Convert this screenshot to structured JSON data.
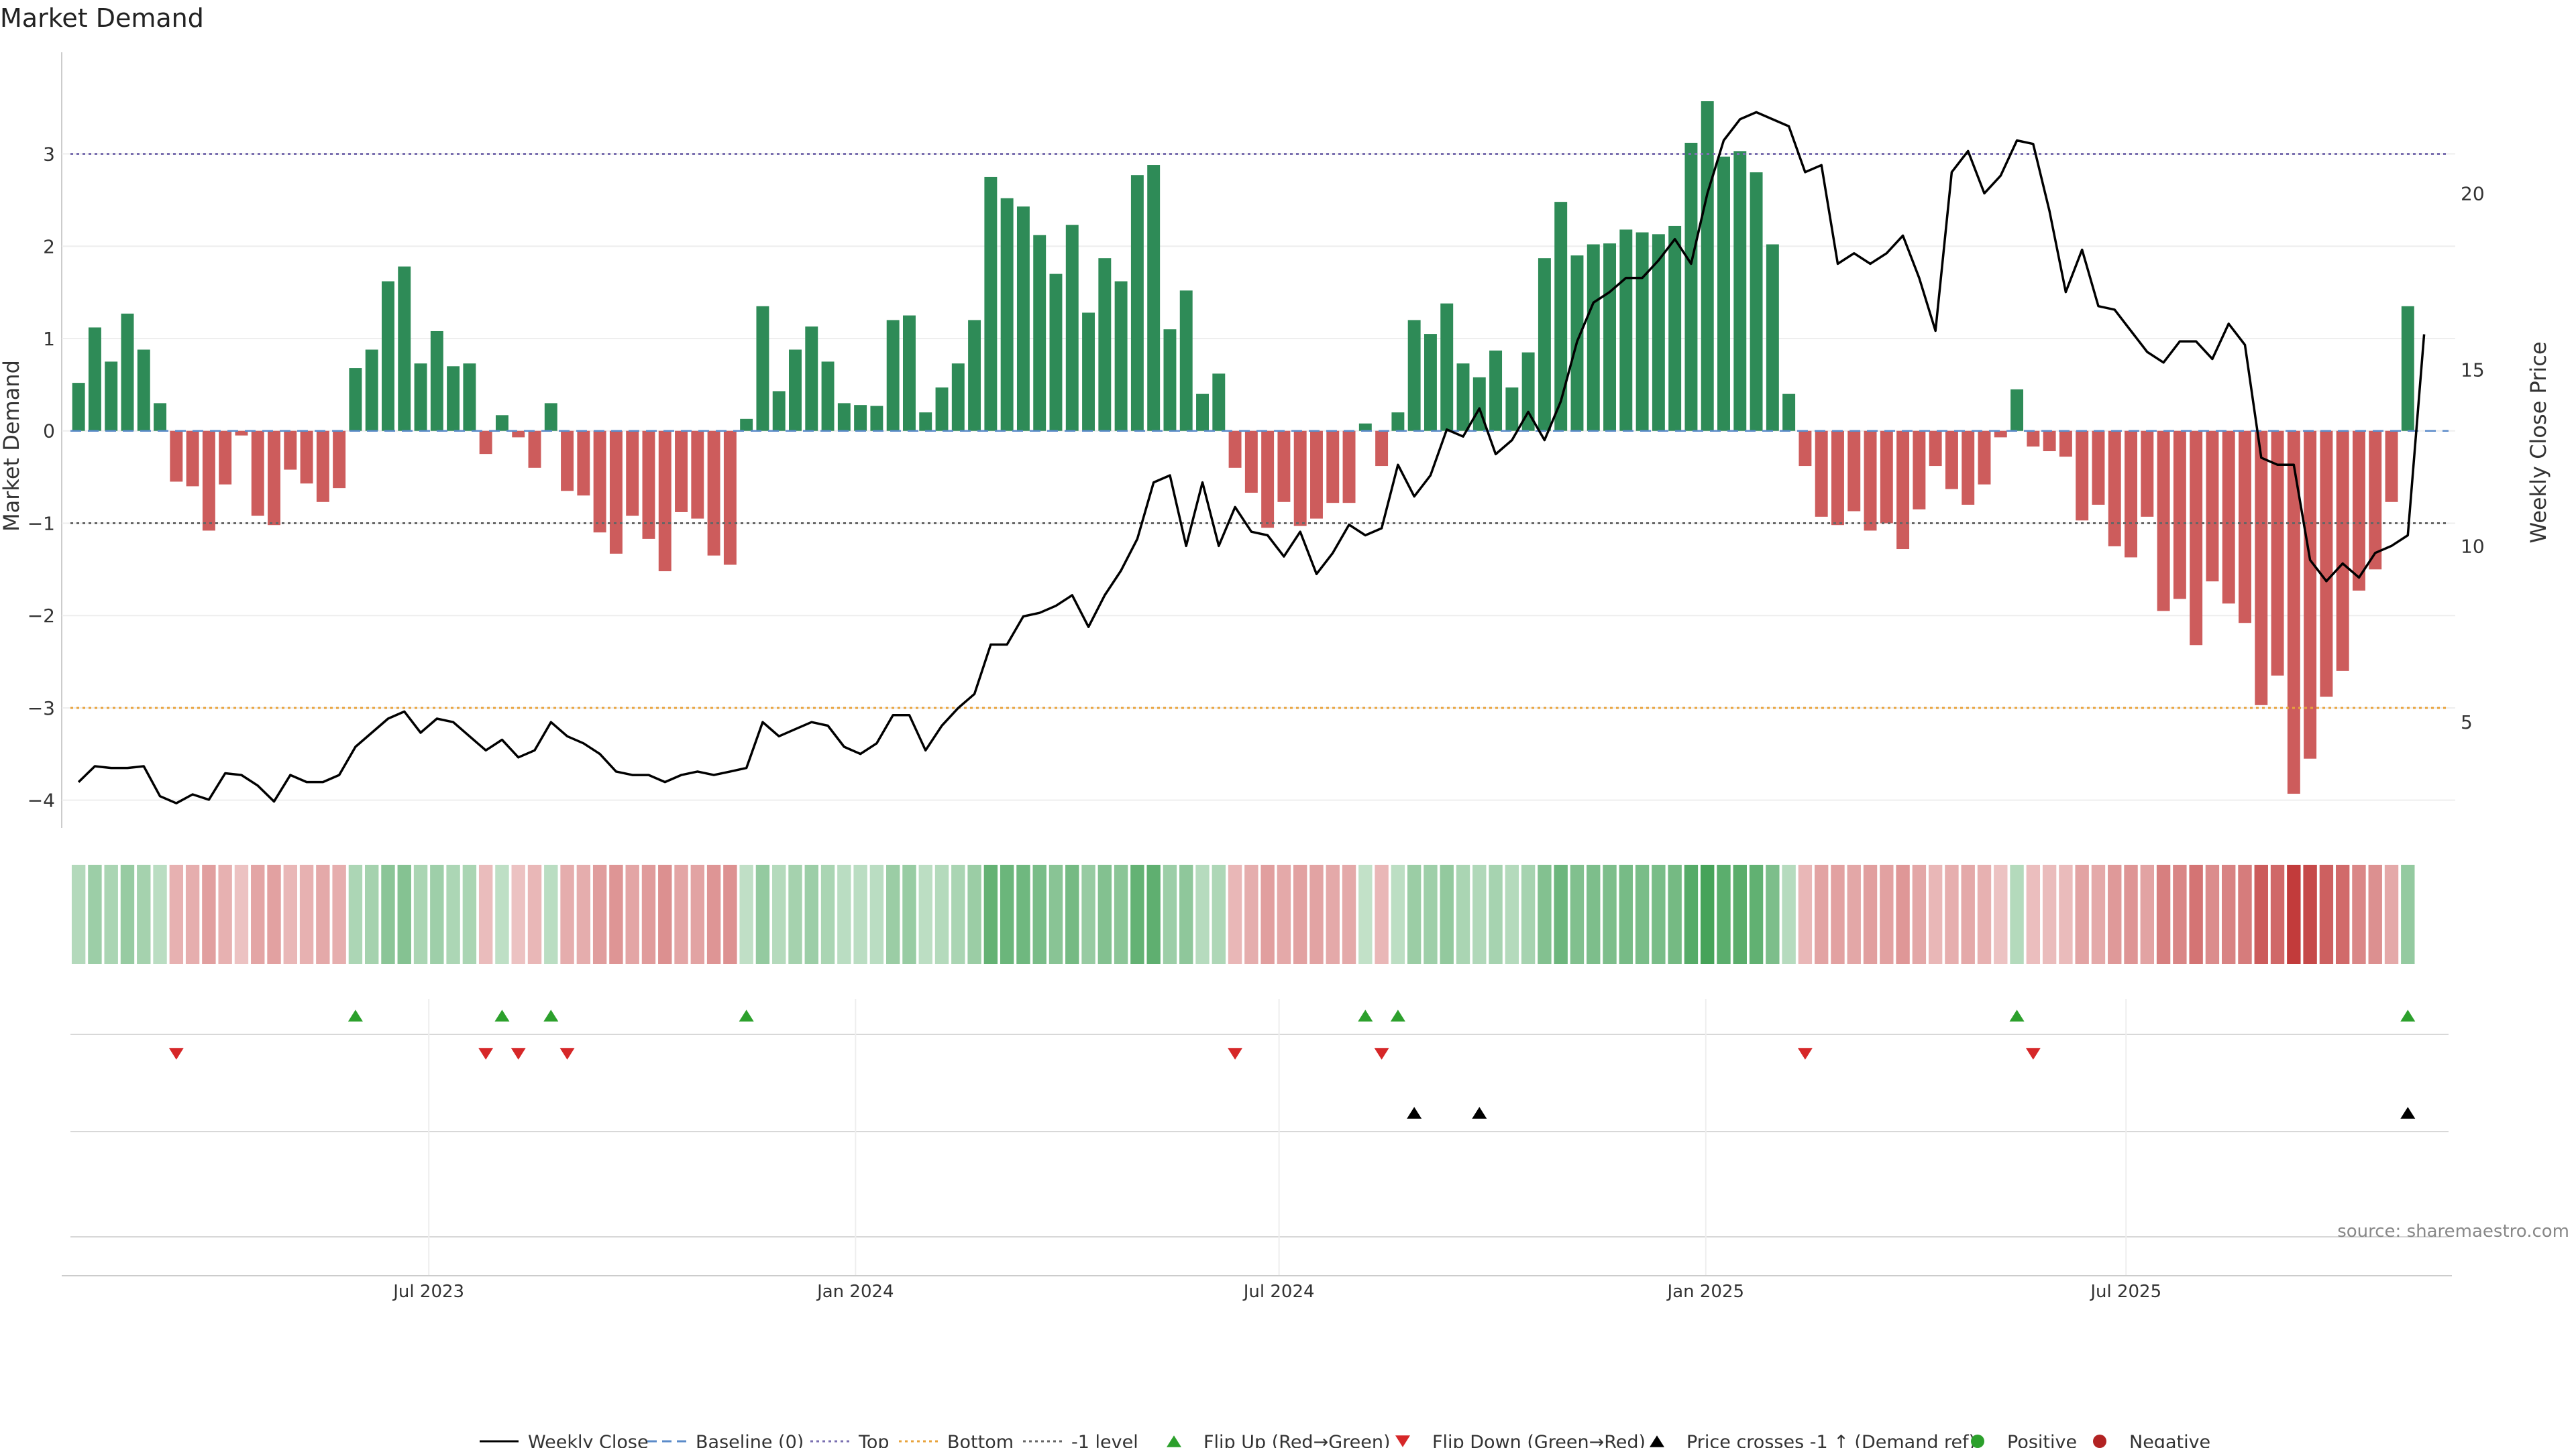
{
  "chart_data": {
    "type": "bar",
    "title": "Market Demand",
    "ylabel": "Market Demand",
    "ylabel_right": "Weekly Close Price",
    "ylim": [
      -4.3,
      4.1
    ],
    "ylim_right": [
      2.0,
      24.0
    ],
    "yticks": [
      3,
      2,
      1,
      0,
      -1,
      -2,
      -3,
      -4
    ],
    "ytick_labels": [
      "3",
      "2",
      "1",
      "0",
      "−1",
      "−2",
      "−3",
      "−4"
    ],
    "yticks_right": [
      20,
      15,
      10,
      5
    ],
    "ytick_labels_right": [
      "20",
      "15",
      "10",
      "5"
    ],
    "x_start": 0,
    "x_end": 145,
    "xticks": [
      21.5,
      47.7,
      73.7,
      99.9,
      125.7
    ],
    "xtick_labels": [
      "Jul 2023",
      "Jan 2024",
      "Jul 2024",
      "Jan 2025",
      "Jul 2025"
    ],
    "reference_lines": [
      {
        "name": "Top",
        "value": 3,
        "color": "#7a6fb0",
        "style": "dotted"
      },
      {
        "name": "-1 level",
        "value": -1,
        "color": "#666666",
        "style": "dotted"
      },
      {
        "name": "Bottom",
        "value": -3,
        "color": "#e8a33c",
        "style": "dotted"
      },
      {
        "name": "Baseline (0)",
        "value": 0,
        "color": "#5b8bc9",
        "style": "dashed"
      }
    ],
    "series": [
      {
        "name": "Market Demand",
        "values": [
          0.52,
          1.12,
          0.75,
          1.27,
          0.88,
          0.3,
          -0.55,
          -0.6,
          -1.08,
          -0.58,
          -0.05,
          -0.92,
          -1.02,
          -0.42,
          -0.57,
          -0.77,
          -0.62,
          0.68,
          0.88,
          1.62,
          1.78,
          0.73,
          1.08,
          0.7,
          0.73,
          -0.25,
          0.17,
          -0.07,
          -0.4,
          0.3,
          -0.65,
          -0.7,
          -1.1,
          -1.33,
          -0.92,
          -1.17,
          -1.52,
          -0.88,
          -0.95,
          -1.35,
          -1.45,
          0.13,
          1.35,
          0.43,
          0.88,
          1.13,
          0.75,
          0.3,
          0.28,
          0.27,
          1.2,
          1.25,
          0.2,
          0.47,
          0.73,
          1.2,
          2.75,
          2.52,
          2.43,
          2.12,
          1.7,
          2.23,
          1.28,
          1.87,
          1.62,
          2.77,
          2.88,
          1.1,
          1.52,
          0.4,
          0.62,
          -0.4,
          -0.67,
          -1.05,
          -0.77,
          -1.03,
          -0.95,
          -0.78,
          -0.78,
          0.08,
          -0.38,
          0.2,
          1.2,
          1.05,
          1.38,
          0.73,
          0.58,
          0.87,
          0.47,
          0.85,
          1.87,
          2.48,
          1.9,
          2.02,
          2.03,
          2.18,
          2.15,
          2.13,
          2.22,
          3.12,
          3.57,
          2.97,
          3.03,
          2.8,
          2.02,
          0.4,
          -0.38,
          -0.93,
          -1.02,
          -0.87,
          -1.08,
          -1.0,
          -1.28,
          -0.85,
          -0.38,
          -0.63,
          -0.8,
          -0.58,
          -0.07,
          0.45,
          -0.17,
          -0.22,
          -0.28,
          -0.97,
          -0.8,
          -1.25,
          -1.37,
          -0.93,
          -1.95,
          -1.82,
          -2.32,
          -1.63,
          -1.87,
          -2.08,
          -2.97,
          -2.65,
          -3.93,
          -3.55,
          -2.88,
          -2.6,
          -1.73,
          -1.5,
          -0.77,
          1.35
        ]
      },
      {
        "name": "Weekly Close",
        "axis": "right",
        "values": [
          3.3,
          3.75,
          3.7,
          3.7,
          3.75,
          2.9,
          2.7,
          2.95,
          2.8,
          3.55,
          3.5,
          3.2,
          2.75,
          3.5,
          3.3,
          3.3,
          3.5,
          4.3,
          4.7,
          5.1,
          5.3,
          4.7,
          5.1,
          5.0,
          4.6,
          4.2,
          4.5,
          4.0,
          4.2,
          5.0,
          4.6,
          4.4,
          4.1,
          3.6,
          3.5,
          3.5,
          3.3,
          3.5,
          3.6,
          3.5,
          3.6,
          3.7,
          5.0,
          4.6,
          4.8,
          5.0,
          4.9,
          4.3,
          4.1,
          4.4,
          5.2,
          5.2,
          4.2,
          4.9,
          5.4,
          5.8,
          7.2,
          7.2,
          8.0,
          8.1,
          8.3,
          8.6,
          7.7,
          8.6,
          9.3,
          10.2,
          11.8,
          12.0,
          10.0,
          11.8,
          10.0,
          11.1,
          10.4,
          10.3,
          9.7,
          10.4,
          9.2,
          9.8,
          10.6,
          10.3,
          10.5,
          12.3,
          11.4,
          12.0,
          13.3,
          13.1,
          13.9,
          12.6,
          13.0,
          13.8,
          13.0,
          14.1,
          15.8,
          16.9,
          17.2,
          17.6,
          17.6,
          18.1,
          18.7,
          18.0,
          20.0,
          21.5,
          22.1,
          22.3,
          22.1,
          21.9,
          20.6,
          20.8,
          18.0,
          18.3,
          18.0,
          18.3,
          18.8,
          17.6,
          16.1,
          20.6,
          21.2,
          20.0,
          20.5,
          21.5,
          21.4,
          19.5,
          17.2,
          18.4,
          16.8,
          16.7,
          16.1,
          15.5,
          15.2,
          15.8,
          15.8,
          15.3,
          16.3,
          15.7,
          12.5,
          12.3,
          12.3,
          9.6,
          9.0,
          9.5,
          9.1,
          9.8,
          10.0,
          10.3,
          16.0
        ]
      }
    ],
    "flip_up_indices": [
      17,
      26,
      29,
      41,
      79,
      81,
      119,
      143
    ],
    "flip_down_indices": [
      6,
      25,
      27,
      30,
      71,
      80,
      106,
      120
    ],
    "price_cross_indices": [
      82,
      86,
      143
    ],
    "colors": {
      "positive_bar": "#2e8b57",
      "negative_bar": "#cd5c5c",
      "price_line": "#000000",
      "flip_up": "#2ca02c",
      "flip_down": "#d62728",
      "cross": "#000000",
      "heat_green": "#3a9d4f",
      "heat_red": "#c23b3b",
      "positive_dot": "#2ca02c",
      "negative_dot": "#b22222"
    },
    "legend_position": "bottom-center",
    "legend": [
      {
        "label": "Weekly Close",
        "kind": "line-solid",
        "color": "#000000"
      },
      {
        "label": "Baseline (0)",
        "kind": "line-dashed",
        "color": "#5b8bc9"
      },
      {
        "label": "Top",
        "kind": "line-dotted",
        "color": "#7a6fb0"
      },
      {
        "label": "Bottom",
        "kind": "line-dotted",
        "color": "#e8a33c"
      },
      {
        "label": "-1 level",
        "kind": "line-dotted",
        "color": "#666666"
      },
      {
        "label": "Flip Up (Red→Green)",
        "kind": "triangle-up",
        "color": "#2ca02c"
      },
      {
        "label": "Flip Down (Green→Red)",
        "kind": "triangle-down",
        "color": "#d62728"
      },
      {
        "label": "Price crosses -1 ↑ (Demand ref)",
        "kind": "triangle-up",
        "color": "#000000"
      },
      {
        "label": "Positive",
        "kind": "dot",
        "color": "#2ca02c"
      },
      {
        "label": "Negative",
        "kind": "dot",
        "color": "#b22222"
      }
    ],
    "annotation": "source: sharemaestro.com"
  }
}
